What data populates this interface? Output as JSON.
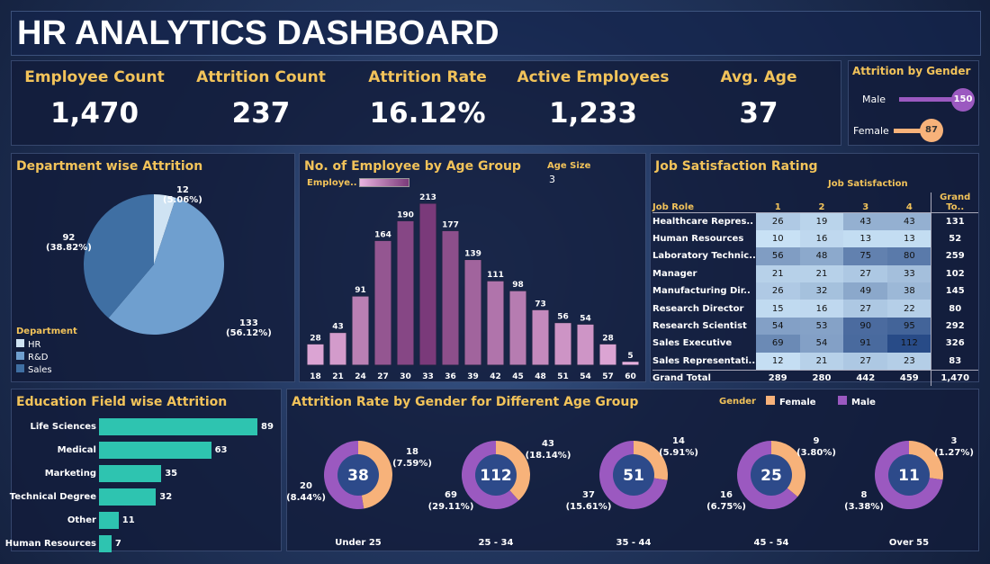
{
  "title": "HR ANALYTICS DASHBOARD",
  "kpis": [
    {
      "label": "Employee Count",
      "value": "1,470"
    },
    {
      "label": "Attrition Count",
      "value": "237"
    },
    {
      "label": "Attrition Rate",
      "value": "16.12%"
    },
    {
      "label": "Active Employees",
      "value": "1,233"
    },
    {
      "label": "Avg. Age",
      "value": "37"
    }
  ],
  "gender": {
    "title": "Attrition by Gender",
    "items": [
      {
        "label": "Male",
        "value": 150,
        "color": "#9b59c0"
      },
      {
        "label": "Female",
        "value": 87,
        "color": "#f7b27a"
      }
    ]
  },
  "department": {
    "title": "Department wise Attrition",
    "legend_title": "Department",
    "items": [
      {
        "label": "HR",
        "value": 12,
        "pct": "(5.06%)",
        "color": "#cfe3f3"
      },
      {
        "label": "R&D",
        "value": 133,
        "pct": "(56.12%)",
        "color": "#6f9fcf"
      },
      {
        "label": "Sales",
        "value": 92,
        "pct": "(38.82%)",
        "color": "#3f6fa3"
      }
    ]
  },
  "age": {
    "title": "No. of Employee by Age Group",
    "legend_label": "Employe..",
    "param_label": "Age Size",
    "param_value": "3"
  },
  "chart_data": {
    "type": "bar",
    "categories": [
      "18",
      "21",
      "24",
      "27",
      "30",
      "33",
      "36",
      "39",
      "42",
      "45",
      "48",
      "51",
      "54",
      "57",
      "60"
    ],
    "values": [
      28,
      43,
      91,
      164,
      190,
      213,
      177,
      139,
      111,
      98,
      73,
      56,
      54,
      28,
      5
    ]
  },
  "job": {
    "title": "Job Satisfaction Rating",
    "col_group": "Job Satisfaction",
    "headers": [
      "Job Role",
      "1",
      "2",
      "3",
      "4",
      "Grand To.."
    ],
    "rows": [
      [
        "Healthcare Repres..",
        "26",
        "19",
        "43",
        "43",
        "131"
      ],
      [
        "Human Resources",
        "10",
        "16",
        "13",
        "13",
        "52"
      ],
      [
        "Laboratory Technic..",
        "56",
        "48",
        "75",
        "80",
        "259"
      ],
      [
        "Manager",
        "21",
        "21",
        "27",
        "33",
        "102"
      ],
      [
        "Manufacturing Dir..",
        "26",
        "32",
        "49",
        "38",
        "145"
      ],
      [
        "Research Director",
        "15",
        "16",
        "27",
        "22",
        "80"
      ],
      [
        "Research Scientist",
        "54",
        "53",
        "90",
        "95",
        "292"
      ],
      [
        "Sales Executive",
        "69",
        "54",
        "91",
        "112",
        "326"
      ],
      [
        "Sales Representati..",
        "12",
        "21",
        "27",
        "23",
        "83"
      ]
    ],
    "total": [
      "Grand Total",
      "289",
      "280",
      "442",
      "459",
      "1,470"
    ]
  },
  "education": {
    "title": "Education Field wise Attrition",
    "items": [
      {
        "label": "Life Sciences",
        "value": 89
      },
      {
        "label": "Medical",
        "value": 63
      },
      {
        "label": "Marketing",
        "value": 35
      },
      {
        "label": "Technical Degree",
        "value": 32
      },
      {
        "label": "Other",
        "value": 11
      },
      {
        "label": "Human Resources",
        "value": 7
      }
    ]
  },
  "agegender": {
    "title": "Attrition Rate by Gender for Different Age Group",
    "legend_title": "Gender",
    "legend": [
      {
        "label": "Female",
        "color": "#f7b27a"
      },
      {
        "label": "Male",
        "color": "#9b59c0"
      }
    ],
    "groups": [
      {
        "label": "Under 25",
        "total": "38",
        "female": 18,
        "female_lbl": "18",
        "female_pct": "(7.59%)",
        "male": 20,
        "male_lbl": "20",
        "male_pct": "(8.44%)"
      },
      {
        "label": "25 - 34",
        "total": "112",
        "female": 43,
        "female_lbl": "43",
        "female_pct": "(18.14%)",
        "male": 69,
        "male_lbl": "69",
        "male_pct": "(29.11%)"
      },
      {
        "label": "35 - 44",
        "total": "51",
        "female": 14,
        "female_lbl": "14",
        "female_pct": "(5.91%)",
        "male": 37,
        "male_lbl": "37",
        "male_pct": "(15.61%)"
      },
      {
        "label": "45 - 54",
        "total": "25",
        "female": 9,
        "female_lbl": "9",
        "female_pct": "(3.80%)",
        "male": 16,
        "male_lbl": "16",
        "male_pct": "(6.75%)"
      },
      {
        "label": "Over 55",
        "total": "11",
        "female": 3,
        "female_lbl": "3",
        "female_pct": "(1.27%)",
        "male": 8,
        "male_lbl": "8",
        "male_pct": "(3.38%)"
      }
    ]
  }
}
